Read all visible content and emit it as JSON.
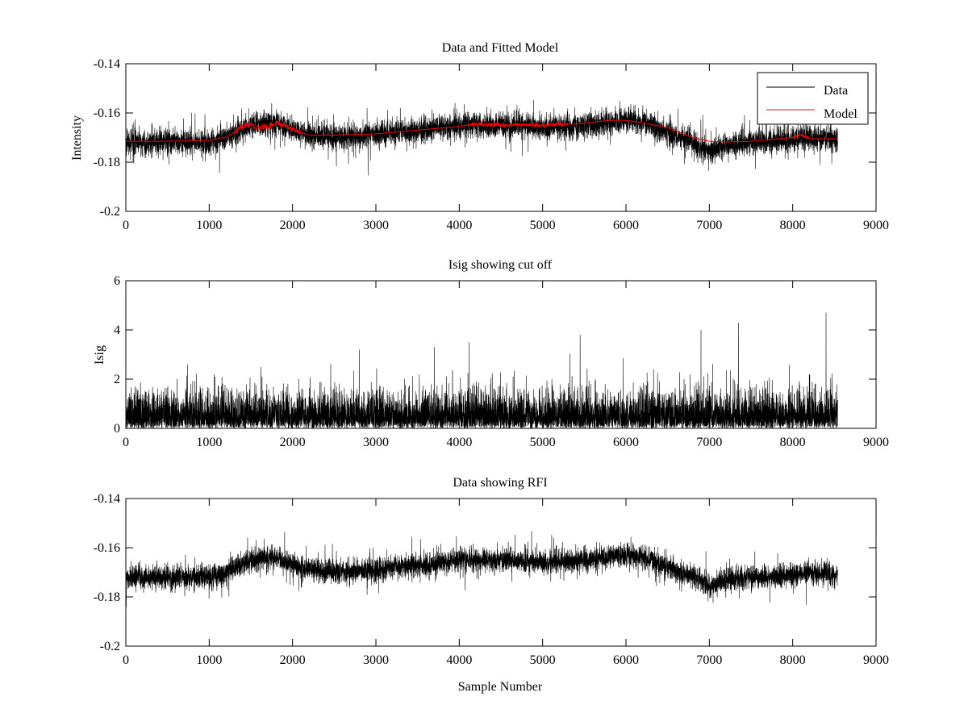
{
  "figure": {
    "background": "#ffffff"
  },
  "chart_data": [
    {
      "type": "line",
      "title": "Data and Fitted Model",
      "xlabel": "",
      "ylabel": "Intensity",
      "xlim": [
        0,
        9000
      ],
      "ylim": [
        -0.2,
        -0.14
      ],
      "xticks": [
        0,
        1000,
        2000,
        3000,
        4000,
        5000,
        6000,
        7000,
        8000,
        9000
      ],
      "xtick_labels": [
        "0",
        "1000",
        "2000",
        "3000",
        "4000",
        "5000",
        "6000",
        "7000",
        "8000",
        "9000"
      ],
      "yticks": [
        -0.14,
        -0.16,
        -0.18,
        -0.2
      ],
      "ytick_labels": [
        "-0.14",
        "-0.16",
        "-0.18",
        "-0.2"
      ],
      "legend": {
        "placement": "top-right",
        "entries": [
          "Data",
          "Model"
        ]
      },
      "series": [
        {
          "name": "Data",
          "color": "#000000",
          "kind": "noisy",
          "n_points": 8540,
          "noise_amplitude": 0.0045,
          "spike_amplitude": 0.006,
          "trend_x": [
            0,
            1000,
            1200,
            1500,
            1800,
            2100,
            2500,
            3000,
            3500,
            4000,
            4500,
            5000,
            5500,
            6000,
            6200,
            6500,
            6800,
            7000,
            7200,
            7500,
            8000,
            8200,
            8540
          ],
          "trend_y": [
            -0.172,
            -0.172,
            -0.17,
            -0.165,
            -0.164,
            -0.168,
            -0.17,
            -0.169,
            -0.167,
            -0.165,
            -0.165,
            -0.166,
            -0.165,
            -0.163,
            -0.164,
            -0.168,
            -0.172,
            -0.176,
            -0.173,
            -0.172,
            -0.171,
            -0.17,
            -0.171
          ]
        },
        {
          "name": "Model",
          "color": "#ff0000",
          "kind": "fitted",
          "x": [
            0,
            500,
            1000,
            1100,
            1200,
            1300,
            1400,
            1500,
            1600,
            1700,
            1800,
            1900,
            2000,
            2100,
            2200,
            2500,
            3000,
            3500,
            4000,
            4200,
            4500,
            4800,
            5000,
            5200,
            5400,
            5800,
            6000,
            6200,
            6500,
            6800,
            7000,
            7200,
            7500,
            8000,
            8100,
            8200,
            8540
          ],
          "y": [
            -0.1715,
            -0.1715,
            -0.1712,
            -0.1705,
            -0.1698,
            -0.168,
            -0.1655,
            -0.165,
            -0.166,
            -0.1655,
            -0.164,
            -0.165,
            -0.1665,
            -0.168,
            -0.169,
            -0.169,
            -0.1685,
            -0.167,
            -0.1655,
            -0.1645,
            -0.165,
            -0.1648,
            -0.1652,
            -0.1645,
            -0.1645,
            -0.163,
            -0.163,
            -0.164,
            -0.166,
            -0.17,
            -0.1715,
            -0.1718,
            -0.1715,
            -0.17,
            -0.169,
            -0.1705,
            -0.1705
          ],
          "jitter_ranges": [
            [
              1300,
              2100,
              0.0012
            ],
            [
              4100,
              5300,
              0.0008
            ],
            [
              8000,
              8200,
              0.0006
            ]
          ]
        }
      ]
    },
    {
      "type": "line",
      "title": "Isig showing cut off",
      "xlabel": "",
      "ylabel": "Isig",
      "xlim": [
        0,
        9000
      ],
      "ylim": [
        0,
        6
      ],
      "xticks": [
        0,
        1000,
        2000,
        3000,
        4000,
        5000,
        6000,
        7000,
        8000,
        9000
      ],
      "xtick_labels": [
        "0",
        "1000",
        "2000",
        "3000",
        "4000",
        "5000",
        "6000",
        "7000",
        "8000",
        "9000"
      ],
      "yticks": [
        6,
        4,
        2,
        0
      ],
      "ytick_labels": [
        "6",
        "4",
        "2",
        "0"
      ],
      "series": [
        {
          "name": "Isig",
          "color": "#000000",
          "kind": "halfnormal",
          "n_points": 8540,
          "scale": 0.95,
          "peaks": [
            [
              8400,
              4.7
            ],
            [
              7350,
              4.3
            ],
            [
              6900,
              4.0
            ],
            [
              5450,
              3.8
            ],
            [
              4120,
              3.5
            ],
            [
              3700,
              3.3
            ],
            [
              2800,
              3.2
            ]
          ]
        }
      ]
    },
    {
      "type": "line",
      "title": "Data showing RFI",
      "xlabel": "Sample Number",
      "ylabel": "",
      "xlim": [
        0,
        9000
      ],
      "ylim": [
        -0.2,
        -0.14
      ],
      "xticks": [
        0,
        1000,
        2000,
        3000,
        4000,
        5000,
        6000,
        7000,
        8000,
        9000
      ],
      "xtick_labels": [
        "0",
        "1000",
        "2000",
        "3000",
        "4000",
        "5000",
        "6000",
        "7000",
        "8000",
        "9000"
      ],
      "yticks": [
        -0.14,
        -0.16,
        -0.18,
        -0.2
      ],
      "ytick_labels": [
        "-0.14",
        "-0.16",
        "-0.18",
        "-0.2"
      ],
      "series": [
        {
          "name": "Data",
          "color": "#000000",
          "kind": "noisy",
          "n_points": 8540,
          "noise_amplitude": 0.0042,
          "spike_amplitude": 0.005,
          "trend_x": [
            0,
            1000,
            1200,
            1500,
            1800,
            2100,
            2500,
            3000,
            3500,
            4000,
            4500,
            5000,
            5500,
            6000,
            6200,
            6500,
            6800,
            7000,
            7200,
            7500,
            8000,
            8200,
            8540
          ],
          "trend_y": [
            -0.172,
            -0.172,
            -0.17,
            -0.165,
            -0.164,
            -0.168,
            -0.17,
            -0.169,
            -0.167,
            -0.165,
            -0.165,
            -0.166,
            -0.165,
            -0.163,
            -0.164,
            -0.168,
            -0.172,
            -0.176,
            -0.173,
            -0.172,
            -0.171,
            -0.17,
            -0.171
          ]
        }
      ]
    }
  ]
}
